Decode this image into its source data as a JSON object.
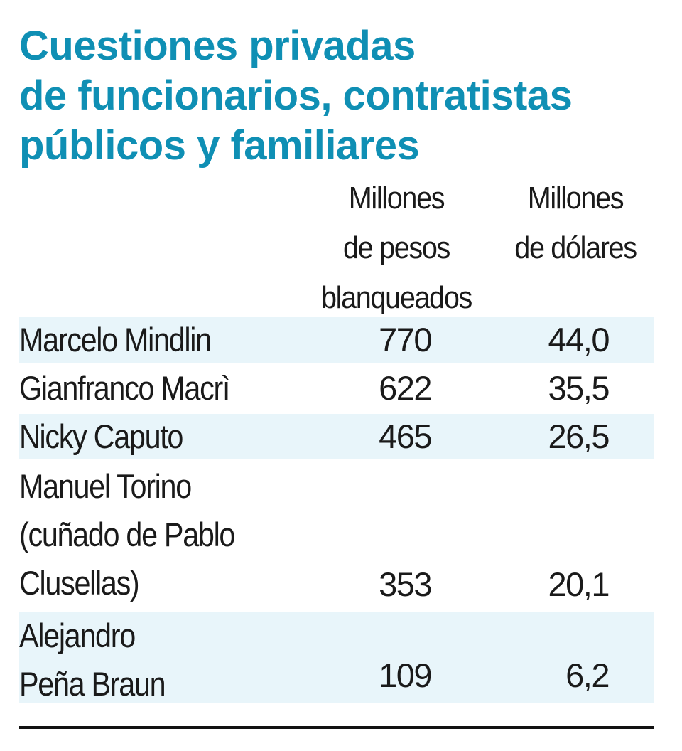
{
  "title": {
    "line1": "Cuestiones privadas",
    "line2": "de funcionarios, contratistas",
    "line3": "públicos y familiares"
  },
  "columns": {
    "pesos": {
      "line1": "Millones",
      "line2": "de pesos",
      "line3": "blanqueados"
    },
    "dolares": {
      "line1": "Millones",
      "line2": "de dólares"
    }
  },
  "rows": [
    {
      "name_lines": [
        "Marcelo Mindlin"
      ],
      "pesos": "770",
      "dolares": "44,0"
    },
    {
      "name_lines": [
        "Gianfranco Macrì"
      ],
      "pesos": "622",
      "dolares": "35,5"
    },
    {
      "name_lines": [
        "Nicky Caputo"
      ],
      "pesos": "465",
      "dolares": "26,5"
    },
    {
      "name_lines": [
        "Manuel Torino",
        "(cuñado de Pablo",
        "Clusellas)"
      ],
      "pesos": "353",
      "dolares": "20,1"
    },
    {
      "name_lines": [
        "Alejandro",
        "Peña Braun"
      ],
      "pesos": "109",
      "dolares": "6,2"
    }
  ],
  "colors": {
    "title": "#0f8fb4",
    "row_shade": "#e8f5fa",
    "text": "#1a1a1a"
  },
  "chart_data": {
    "type": "table",
    "title": "Cuestiones privadas de funcionarios, contratistas públicos y familiares",
    "columns": [
      "",
      "Millones de pesos blanqueados",
      "Millones de dólares"
    ],
    "rows": [
      [
        "Marcelo Mindlin",
        770,
        44.0
      ],
      [
        "Gianfranco Macrì",
        622,
        35.5
      ],
      [
        "Nicky Caputo",
        465,
        26.5
      ],
      [
        "Manuel Torino (cuñado de Pablo Clusellas)",
        353,
        20.1
      ],
      [
        "Alejandro Peña Braun",
        109,
        6.2
      ]
    ]
  }
}
